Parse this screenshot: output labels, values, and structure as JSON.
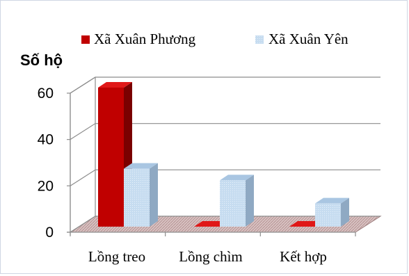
{
  "chart_data": {
    "type": "bar",
    "title": "",
    "ylabel": "Số hộ",
    "xlabel": "",
    "categories": [
      "Lồng treo",
      "Lồng chìm",
      "Kết hợp"
    ],
    "series": [
      {
        "name": "Xã Xuân Phương",
        "values": [
          60,
          0,
          0
        ],
        "color": "#c00000"
      },
      {
        "name": "Xã Xuân Yên",
        "values": [
          25,
          20,
          10
        ],
        "color": "#bdd7ee"
      }
    ],
    "ylim": [
      0,
      60
    ],
    "yticks": [
      0,
      20,
      40,
      60
    ],
    "grid": true,
    "legend_position": "top",
    "style": "3d-clustered-column",
    "floor_color": "#c0a0a0"
  }
}
